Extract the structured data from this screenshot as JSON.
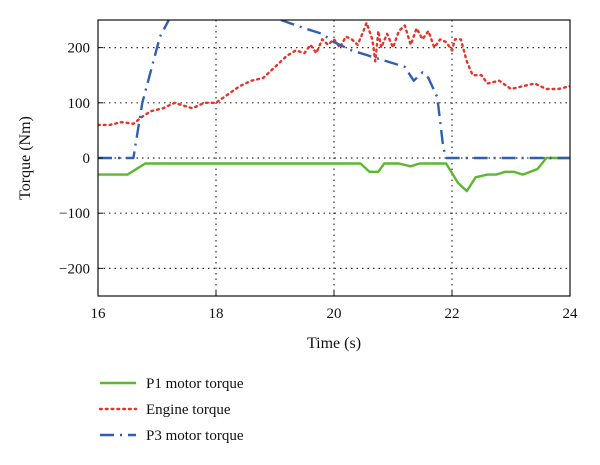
{
  "chart_data": {
    "type": "line",
    "title": "",
    "xlabel": "Time (s)",
    "ylabel": "Torque (Nm)",
    "xlim": [
      16,
      24
    ],
    "ylim": [
      -250,
      250
    ],
    "xticks": [
      16,
      18,
      20,
      22,
      24
    ],
    "yticks": [
      -200,
      -100,
      0,
      100,
      200
    ],
    "grid": true,
    "legend_position": "below",
    "series": [
      {
        "name": "P1 motor torque",
        "color": "#5cb82e",
        "style": "solid",
        "points": [
          [
            16.0,
            -30
          ],
          [
            16.5,
            -30
          ],
          [
            16.8,
            -10
          ],
          [
            17.5,
            -10
          ],
          [
            18.5,
            -10
          ],
          [
            19.5,
            -10
          ],
          [
            20.45,
            -10
          ],
          [
            20.6,
            -25
          ],
          [
            20.75,
            -25
          ],
          [
            20.85,
            -10
          ],
          [
            21.1,
            -10
          ],
          [
            21.3,
            -15
          ],
          [
            21.45,
            -10
          ],
          [
            21.9,
            -10
          ],
          [
            22.1,
            -45
          ],
          [
            22.25,
            -60
          ],
          [
            22.4,
            -35
          ],
          [
            22.6,
            -30
          ],
          [
            22.75,
            -30
          ],
          [
            22.9,
            -25
          ],
          [
            23.05,
            -25
          ],
          [
            23.2,
            -30
          ],
          [
            23.45,
            -20
          ],
          [
            23.6,
            0
          ],
          [
            24.0,
            0
          ]
        ]
      },
      {
        "name": "Engine torque",
        "color": "#e8332a",
        "style": "dotted",
        "points": [
          [
            16.0,
            60
          ],
          [
            16.2,
            60
          ],
          [
            16.4,
            65
          ],
          [
            16.6,
            62
          ],
          [
            16.75,
            75
          ],
          [
            16.9,
            85
          ],
          [
            17.1,
            90
          ],
          [
            17.3,
            100
          ],
          [
            17.45,
            95
          ],
          [
            17.6,
            90
          ],
          [
            17.8,
            100
          ],
          [
            18.0,
            100
          ],
          [
            18.2,
            115
          ],
          [
            18.4,
            130
          ],
          [
            18.6,
            140
          ],
          [
            18.8,
            145
          ],
          [
            19.0,
            165
          ],
          [
            19.2,
            185
          ],
          [
            19.35,
            195
          ],
          [
            19.5,
            190
          ],
          [
            19.6,
            205
          ],
          [
            19.7,
            190
          ],
          [
            19.8,
            215
          ],
          [
            19.9,
            205
          ],
          [
            20.0,
            215
          ],
          [
            20.1,
            200
          ],
          [
            20.2,
            220
          ],
          [
            20.3,
            215
          ],
          [
            20.4,
            205
          ],
          [
            20.5,
            230
          ],
          [
            20.55,
            245
          ],
          [
            20.65,
            215
          ],
          [
            20.7,
            175
          ],
          [
            20.75,
            230
          ],
          [
            20.8,
            200
          ],
          [
            20.9,
            225
          ],
          [
            21.0,
            200
          ],
          [
            21.1,
            230
          ],
          [
            21.2,
            240
          ],
          [
            21.3,
            205
          ],
          [
            21.4,
            235
          ],
          [
            21.5,
            215
          ],
          [
            21.6,
            230
          ],
          [
            21.7,
            200
          ],
          [
            21.8,
            215
          ],
          [
            21.9,
            210
          ],
          [
            22.0,
            195
          ],
          [
            22.05,
            215
          ],
          [
            22.15,
            215
          ],
          [
            22.25,
            175
          ],
          [
            22.35,
            150
          ],
          [
            22.5,
            150
          ],
          [
            22.6,
            135
          ],
          [
            22.8,
            140
          ],
          [
            23.0,
            125
          ],
          [
            23.2,
            130
          ],
          [
            23.4,
            135
          ],
          [
            23.6,
            125
          ],
          [
            23.8,
            125
          ],
          [
            24.0,
            130
          ]
        ]
      },
      {
        "name": "P3 motor torque",
        "color": "#2e5fb5",
        "style": "dashdot",
        "points": [
          [
            16.0,
            0
          ],
          [
            16.6,
            0
          ],
          [
            16.75,
            100
          ],
          [
            17.05,
            220
          ],
          [
            17.2,
            250
          ]
        ],
        "points_b": [
          [
            19.1,
            250
          ],
          [
            19.5,
            235
          ],
          [
            19.8,
            225
          ],
          [
            20.0,
            210
          ],
          [
            20.3,
            195
          ],
          [
            20.6,
            185
          ],
          [
            20.9,
            175
          ],
          [
            21.2,
            165
          ],
          [
            21.35,
            140
          ],
          [
            21.5,
            155
          ],
          [
            21.6,
            145
          ],
          [
            21.75,
            110
          ],
          [
            21.85,
            20
          ],
          [
            21.9,
            0
          ],
          [
            24.0,
            0
          ]
        ]
      }
    ]
  }
}
